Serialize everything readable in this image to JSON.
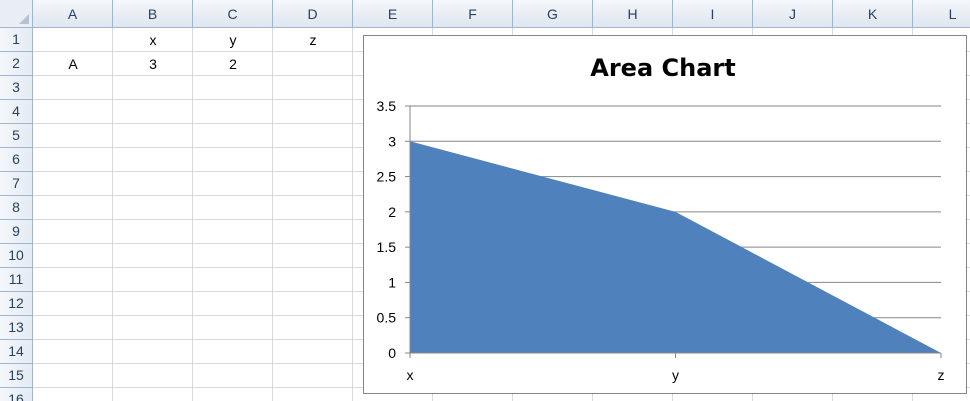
{
  "sheet": {
    "columns": [
      "A",
      "B",
      "C",
      "D",
      "E",
      "F",
      "G",
      "H",
      "I",
      "J",
      "K",
      "L"
    ],
    "rows": [
      "1",
      "2",
      "3",
      "4",
      "5",
      "6",
      "7",
      "8",
      "9",
      "10",
      "11",
      "12",
      "13",
      "14",
      "15",
      "16"
    ],
    "cells": {
      "B1": "x",
      "C1": "y",
      "D1": "z",
      "A2": "A",
      "B2": "3",
      "C2": "2"
    }
  },
  "chart_data": {
    "type": "area",
    "title": "Area Chart",
    "categories": [
      "x",
      "y",
      "z"
    ],
    "series": [
      {
        "values": [
          3,
          2,
          0
        ],
        "color": "#4f81bd"
      }
    ],
    "ylim": [
      0,
      3.5
    ],
    "yticks": [
      "0",
      "0.5",
      "1",
      "1.5",
      "2",
      "2.5",
      "3",
      "3.5"
    ],
    "grid": true,
    "xlabel": "",
    "ylabel": ""
  }
}
